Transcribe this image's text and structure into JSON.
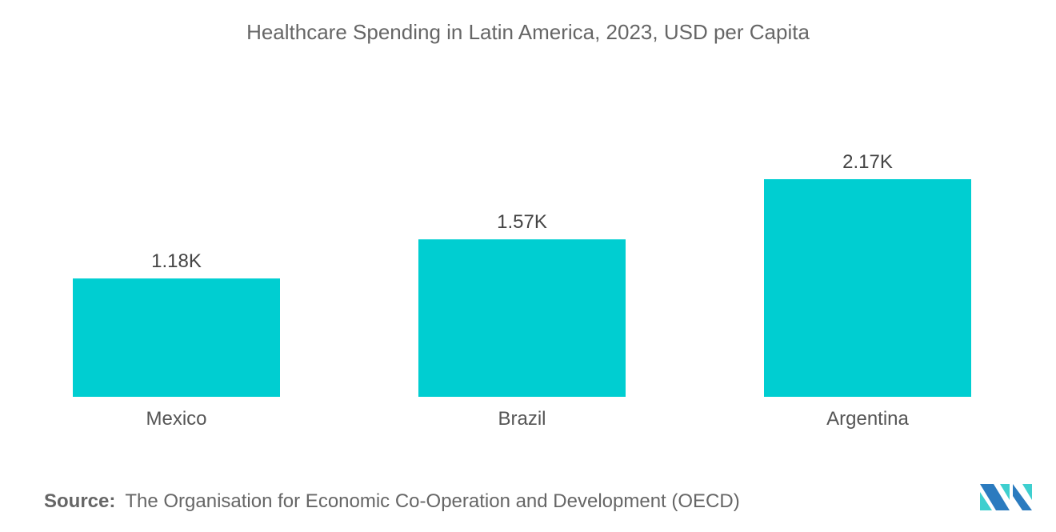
{
  "chart_data": {
    "type": "bar",
    "title": "Healthcare Spending in Latin America, 2023, USD per Capita",
    "categories": [
      "Mexico",
      "Brazil",
      "Argentina"
    ],
    "values": [
      1180,
      1570,
      2170
    ],
    "data_labels": [
      "1.18K",
      "1.57K",
      "2.17K"
    ],
    "xlabel": "",
    "ylabel": "",
    "ylim": [
      0,
      2500
    ],
    "grid": false,
    "bar_color": "#00CED1"
  },
  "source": {
    "label": "Source:",
    "text": "The Organisation for Economic Co-Operation and Development (OECD)"
  },
  "logo": {
    "colors": [
      "#2B7BBF",
      "#3ECFCF"
    ]
  }
}
